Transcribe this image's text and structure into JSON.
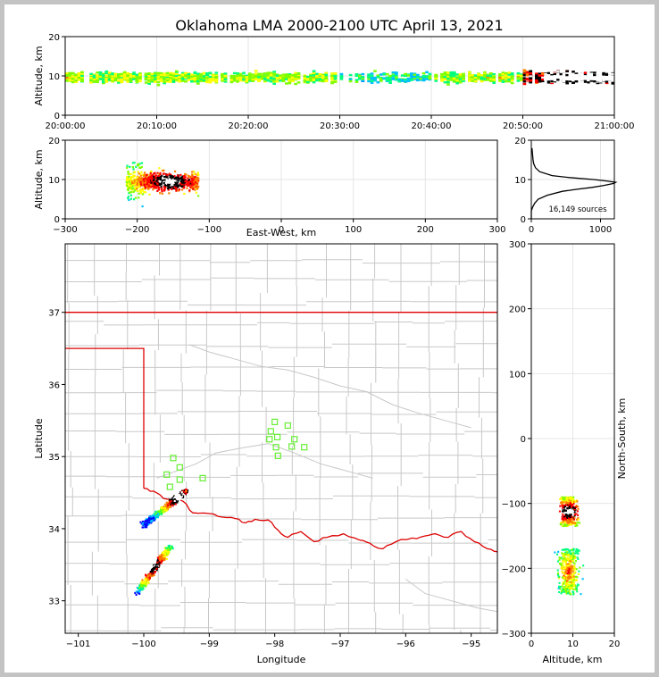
{
  "title": "Oklahoma LMA 2000-2100 UTC April 13, 2021",
  "colors": {
    "frame": "#c3c3c3",
    "county_lines": "#c8c8c8",
    "state_border": "#dd0000",
    "station_marker": "#66ee33",
    "histogram_line": "#000000"
  },
  "density_colormap": [
    "#0000ff",
    "#00bfff",
    "#00ff80",
    "#7fff00",
    "#ffff00",
    "#ff8000",
    "#ff0000",
    "#000000",
    "#ffffff"
  ],
  "chart_data": [
    {
      "id": "time_height",
      "type": "heatmap",
      "ylabel": "Altitude, km",
      "xlim": [
        "20:00:00",
        "21:00:00"
      ],
      "ylim": [
        0,
        20
      ],
      "x_ticks": [
        "20:00:00",
        "20:10:00",
        "20:20:00",
        "20:30:00",
        "20:40:00",
        "20:50:00",
        "21:00:00"
      ],
      "y_ticks": [
        "0",
        "10",
        "20"
      ],
      "altitude_band_km": [
        5,
        14
      ],
      "peak_altitude_km": 9.5,
      "density_by_10min": [
        {
          "start": "20:00:00",
          "level": "medium"
        },
        {
          "start": "20:10:00",
          "level": "medium"
        },
        {
          "start": "20:20:00",
          "level": "medium"
        },
        {
          "start": "20:30:00",
          "level": "low"
        },
        {
          "start": "20:40:00",
          "level": "medium"
        },
        {
          "start": "20:50:00",
          "level": "high"
        }
      ]
    },
    {
      "id": "ew_altitude",
      "type": "heatmap",
      "xlabel": "East-West, km",
      "ylabel": "Altitude, km",
      "xlim": [
        -300,
        300
      ],
      "ylim": [
        0,
        20
      ],
      "x_ticks": [
        "−300",
        "−200",
        "−100",
        "0",
        "100",
        "200",
        "300"
      ],
      "y_ticks": [
        "0",
        "10",
        "20"
      ],
      "source_region": {
        "ew_km": [
          -215,
          -115
        ],
        "alt_km": [
          3,
          20
        ]
      },
      "core": {
        "ew_km": -155,
        "alt_km": 9.5
      }
    },
    {
      "id": "altitude_histogram",
      "type": "line",
      "xlim": [
        0,
        1200
      ],
      "ylim": [
        0,
        20
      ],
      "x_ticks": [
        "0",
        "1000"
      ],
      "y_ticks": [
        "0",
        "10",
        "20"
      ],
      "annotation": "16,149 sources",
      "altitude_km": [
        0,
        2,
        3,
        4,
        5,
        6,
        7,
        7.5,
        8,
        8.5,
        9,
        9.3,
        9.6,
        10,
        10.5,
        11,
        12,
        13,
        14,
        15,
        16,
        17,
        18
      ],
      "count": [
        0,
        0,
        20,
        50,
        100,
        230,
        450,
        650,
        880,
        1050,
        1190,
        1220,
        1100,
        900,
        550,
        300,
        120,
        60,
        35,
        25,
        20,
        15,
        10
      ]
    },
    {
      "id": "plan_view",
      "type": "map",
      "xlabel": "Longitude",
      "ylabel": "Latitude",
      "xlim": [
        -101.2,
        -94.6
      ],
      "ylim": [
        32.55,
        37.95
      ],
      "x_ticks": [
        "−101",
        "−100",
        "−99",
        "−98",
        "−97",
        "−96",
        "−95"
      ],
      "y_ticks": [
        "33",
        "34",
        "35",
        "36",
        "37"
      ],
      "stations": [
        {
          "lon": -99.55,
          "lat": 34.98
        },
        {
          "lon": -99.45,
          "lat": 34.85
        },
        {
          "lon": -99.65,
          "lat": 34.75
        },
        {
          "lon": -99.45,
          "lat": 34.68
        },
        {
          "lon": -99.6,
          "lat": 34.58
        },
        {
          "lon": -99.1,
          "lat": 34.7
        },
        {
          "lon": -98.0,
          "lat": 35.48
        },
        {
          "lon": -97.8,
          "lat": 35.43
        },
        {
          "lon": -98.06,
          "lat": 35.35
        },
        {
          "lon": -97.96,
          "lat": 35.27
        },
        {
          "lon": -98.08,
          "lat": 35.24
        },
        {
          "lon": -97.7,
          "lat": 35.24
        },
        {
          "lon": -97.98,
          "lat": 35.13
        },
        {
          "lon": -97.74,
          "lat": 35.14
        },
        {
          "lon": -97.55,
          "lat": 35.13
        },
        {
          "lon": -97.95,
          "lat": 35.01
        }
      ],
      "clusters": [
        {
          "name": "northern",
          "lon": [
            -100.0,
            -99.35
          ],
          "lat": [
            34.05,
            34.52
          ]
        },
        {
          "name": "southern",
          "lon": [
            -100.1,
            -99.6
          ],
          "lat": [
            33.1,
            33.75
          ]
        }
      ]
    },
    {
      "id": "ns_altitude",
      "type": "heatmap",
      "xlabel": "Altitude, km",
      "ylabel": "North-South, km",
      "xlim": [
        0,
        20
      ],
      "ylim": [
        -300,
        300
      ],
      "x_ticks": [
        "0",
        "10",
        "20"
      ],
      "y_ticks": [
        "−300",
        "−200",
        "−100",
        "0",
        "100",
        "200",
        "300"
      ],
      "source_regions": [
        {
          "ns_km": [
            -135,
            -90
          ],
          "alt_km": [
            3,
            19
          ]
        },
        {
          "ns_km": [
            -240,
            -170
          ],
          "alt_km": [
            5,
            20
          ]
        }
      ]
    }
  ]
}
